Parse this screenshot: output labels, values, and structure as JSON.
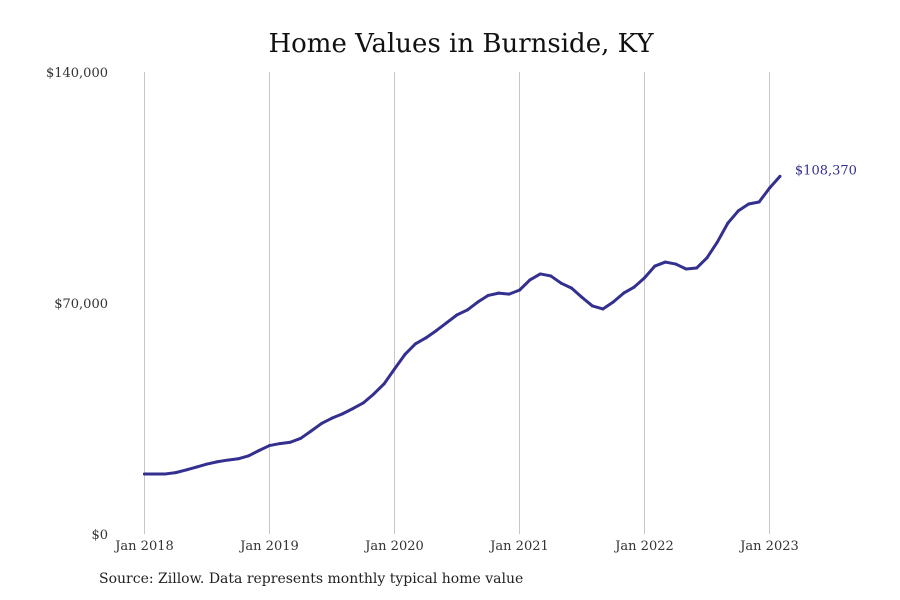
{
  "chart_data": {
    "type": "line",
    "title": "Home Values in Burnside, KY",
    "ylim": [
      0,
      140000
    ],
    "y_ticks": [
      {
        "value": 0,
        "label": "$0"
      },
      {
        "value": 70000,
        "label": "$70,000"
      },
      {
        "value": 140000,
        "label": "$140,000"
      }
    ],
    "x_ticks": [
      "Jan 2018",
      "Jan 2019",
      "Jan 2020",
      "Jan 2021",
      "Jan 2022",
      "Jan 2023"
    ],
    "grid": {
      "vertical": true,
      "horizontal": false
    },
    "series": [
      {
        "color": "#33308f",
        "end_label": "$108,370",
        "points": [
          [
            "2018-01",
            18200
          ],
          [
            "2018-02",
            18200
          ],
          [
            "2018-03",
            18200
          ],
          [
            "2018-04",
            18600
          ],
          [
            "2018-05",
            19400
          ],
          [
            "2018-06",
            20300
          ],
          [
            "2018-07",
            21200
          ],
          [
            "2018-08",
            21900
          ],
          [
            "2018-09",
            22400
          ],
          [
            "2018-10",
            22800
          ],
          [
            "2018-11",
            23700
          ],
          [
            "2018-12",
            25300
          ],
          [
            "2019-01",
            26800
          ],
          [
            "2019-02",
            27400
          ],
          [
            "2019-03",
            27800
          ],
          [
            "2019-04",
            29000
          ],
          [
            "2019-05",
            31200
          ],
          [
            "2019-06",
            33500
          ],
          [
            "2019-07",
            35100
          ],
          [
            "2019-08",
            36400
          ],
          [
            "2019-09",
            38000
          ],
          [
            "2019-10",
            39700
          ],
          [
            "2019-11",
            42400
          ],
          [
            "2019-12",
            45500
          ],
          [
            "2020-01",
            50000
          ],
          [
            "2020-02",
            54400
          ],
          [
            "2020-03",
            57600
          ],
          [
            "2020-04",
            59400
          ],
          [
            "2020-05",
            61600
          ],
          [
            "2020-06",
            64000
          ],
          [
            "2020-07",
            66400
          ],
          [
            "2020-08",
            67900
          ],
          [
            "2020-09",
            70300
          ],
          [
            "2020-10",
            72300
          ],
          [
            "2020-11",
            73000
          ],
          [
            "2020-12",
            72700
          ],
          [
            "2021-01",
            73900
          ],
          [
            "2021-02",
            77000
          ],
          [
            "2021-03",
            78800
          ],
          [
            "2021-04",
            78200
          ],
          [
            "2021-05",
            76000
          ],
          [
            "2021-06",
            74500
          ],
          [
            "2021-07",
            71700
          ],
          [
            "2021-08",
            69100
          ],
          [
            "2021-09",
            68200
          ],
          [
            "2021-10",
            70300
          ],
          [
            "2021-11",
            73000
          ],
          [
            "2021-12",
            74800
          ],
          [
            "2022-01",
            77600
          ],
          [
            "2022-02",
            81200
          ],
          [
            "2022-03",
            82400
          ],
          [
            "2022-04",
            81800
          ],
          [
            "2022-05",
            80300
          ],
          [
            "2022-06",
            80600
          ],
          [
            "2022-07",
            83700
          ],
          [
            "2022-08",
            88500
          ],
          [
            "2022-09",
            94200
          ],
          [
            "2022-10",
            97900
          ],
          [
            "2022-11",
            100000
          ],
          [
            "2022-12",
            100600
          ],
          [
            "2023-01",
            104800
          ],
          [
            "2023-02",
            108370
          ]
        ]
      }
    ]
  },
  "footer": {
    "source": "Source: Zillow. Data represents monthly typical home value"
  }
}
